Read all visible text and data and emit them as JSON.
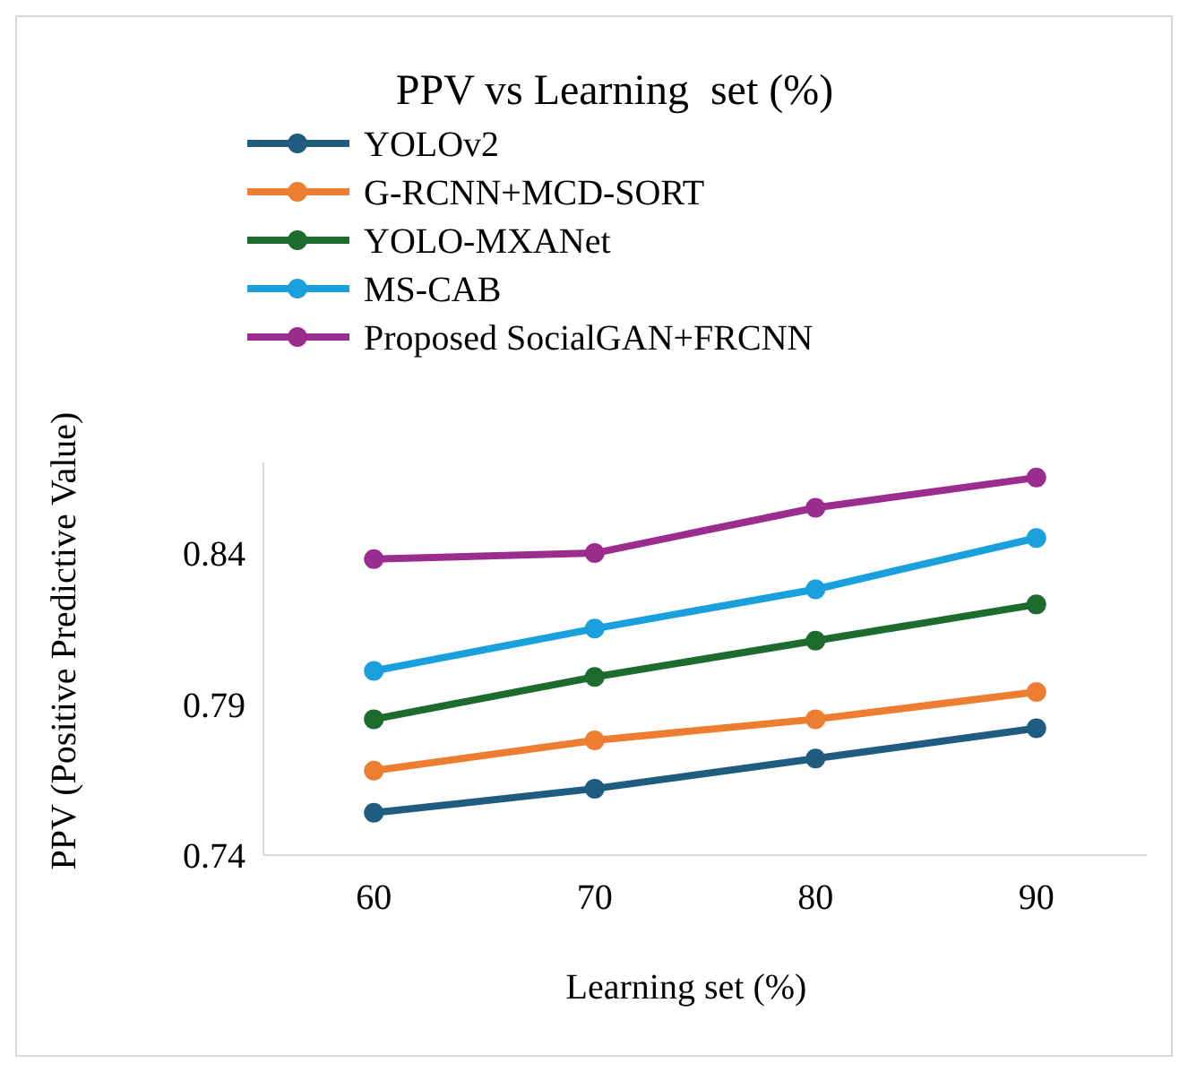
{
  "chart_data": {
    "type": "line",
    "title": "PPV vs Learning  set (%)",
    "xlabel": "Learning set (%)",
    "ylabel": "PPV (Positive Predictive Value)",
    "categories": [
      "60",
      "70",
      "80",
      "90"
    ],
    "ylim": [
      0.74,
      0.87
    ],
    "yticks": [
      0.74,
      0.79,
      0.84
    ],
    "grid": false,
    "legend": "top",
    "marker": "circle",
    "line_style": "solid",
    "series": [
      {
        "name": "YOLOv2",
        "color": "#1f5c7f",
        "values": [
          0.754,
          0.762,
          0.772,
          0.782
        ]
      },
      {
        "name": "G-RCNN+MCD-SORT",
        "color": "#ed7d31",
        "values": [
          0.768,
          0.778,
          0.785,
          0.794
        ]
      },
      {
        "name": "YOLO-MXANet",
        "color": "#1e6b2e",
        "values": [
          0.785,
          0.799,
          0.811,
          0.823
        ]
      },
      {
        "name": "MS-CAB",
        "color": "#1aa0dc",
        "values": [
          0.801,
          0.815,
          0.828,
          0.845
        ]
      },
      {
        "name": "Proposed SocialGAN+FRCNN",
        "color": "#9b2d8f",
        "values": [
          0.838,
          0.84,
          0.855,
          0.865
        ]
      }
    ]
  }
}
